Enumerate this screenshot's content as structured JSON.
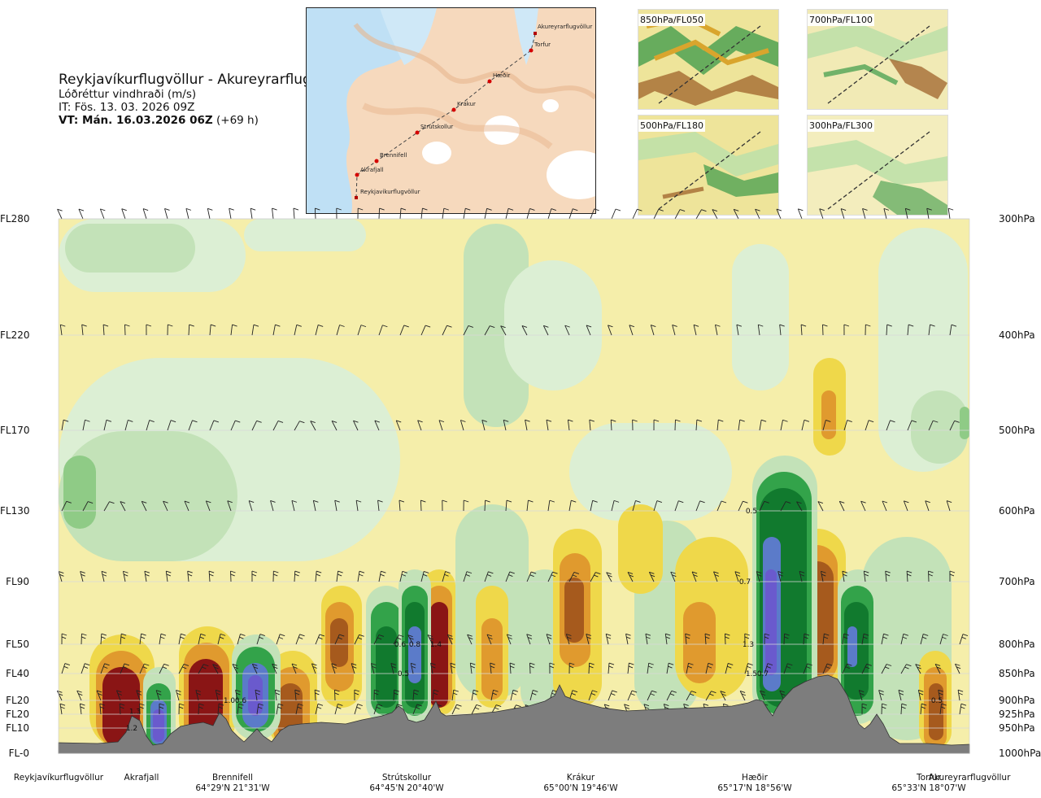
{
  "header": {
    "title": "Reykjavíkurflugvöllur - Akureyrarflugvöllur",
    "subtitle": "Lóðréttur vindhraði (m/s)",
    "issue_time": "IT: Fös. 13. 03. 2026 09Z",
    "valid_time": "VT: Mán. 16.03.2026 06Z",
    "lead_time": "(+69 h)"
  },
  "map": {
    "route_points": [
      {
        "name": "Reykjavíkurflugvöllur"
      },
      {
        "name": "Akrafjall"
      },
      {
        "name": "Brennifell"
      },
      {
        "name": "Strútskollur"
      },
      {
        "name": "Krákur"
      },
      {
        "name": "Hæðir"
      },
      {
        "name": "Torfur"
      },
      {
        "name": "Akureyrarflugvöllur"
      }
    ]
  },
  "insets": [
    {
      "label": "850hPa/FL050"
    },
    {
      "label": "700hPa/FL100"
    },
    {
      "label": "500hPa/FL180"
    },
    {
      "label": "300hPa/FL300"
    }
  ],
  "levels": [
    {
      "fl": "FL280",
      "hpa": "300hPa"
    },
    {
      "fl": "FL220",
      "hpa": "400hPa"
    },
    {
      "fl": "FL170",
      "hpa": "500hPa"
    },
    {
      "fl": "FL130",
      "hpa": "600hPa"
    },
    {
      "fl": "FL90",
      "hpa": "700hPa"
    },
    {
      "fl": "FL50",
      "hpa": "800hPa"
    },
    {
      "fl": "FL40",
      "hpa": "850hPa"
    },
    {
      "fl": "FL20",
      "hpa": "900hPa"
    },
    {
      "fl": "FL20",
      "hpa": "925hPa"
    },
    {
      "fl": "FL10",
      "hpa": "950hPa"
    },
    {
      "fl": "FL-0",
      "hpa": "1000hPa"
    }
  ],
  "locations": [
    {
      "name": "Reykjavíkurflugvöllur",
      "coord": ""
    },
    {
      "name": "Akrafjall",
      "coord": ""
    },
    {
      "name": "Brennifell",
      "coord": "64°29'N 21°31'W"
    },
    {
      "name": "Strútskollur",
      "coord": "64°45'N 20°40'W"
    },
    {
      "name": "Krákur",
      "coord": "65°00'N 19°46'W"
    },
    {
      "name": "Hæðir",
      "coord": "65°17'N 18°56'W"
    },
    {
      "name": "Torfur",
      "coord": "65°33'N 18°07'W"
    },
    {
      "name": "Akureyrarflugvöllur",
      "coord": ""
    }
  ],
  "colors": {
    "light_green": "#dcefd4",
    "pale_green": "#c3e2b8",
    "mid_green": "#8fcb86",
    "green": "#33a34a",
    "dark_green": "#117a2e",
    "blue": "#5b7bc9",
    "violet": "#6a5acd",
    "pale_yellow": "#f5eeaa",
    "yellow": "#efd84a",
    "orange": "#e09a2e",
    "brown": "#a65a1d",
    "dark_red": "#8a1515",
    "terrain": "#7d7d7d"
  },
  "chart_data": {
    "type": "heatmap",
    "title": "Reykjavíkurflugvöllur - Akureyrarflugvöllur",
    "variable": "Lóðréttur vindhraði (m/s)",
    "x_axis": "route distance from Reykjavíkurflugvöllur to Akureyrarflugvöllur",
    "y_axis_left": [
      "FL280",
      "FL220",
      "FL170",
      "FL130",
      "FL90",
      "FL50",
      "FL40",
      "FL20",
      "FL20",
      "FL10",
      "FL-0"
    ],
    "y_axis_right": [
      "300hPa",
      "400hPa",
      "500hPa",
      "600hPa",
      "700hPa",
      "800hPa",
      "850hPa",
      "900hPa",
      "925hPa",
      "950hPa",
      "1000hPa"
    ],
    "pressure_levels_hpa": [
      300,
      400,
      500,
      600,
      700,
      800,
      850,
      900,
      925,
      950,
      1000
    ],
    "value_labels": [
      {
        "value": "1.2",
        "station": "Akrafjall",
        "level_hpa": 950
      },
      {
        "value": "1.3",
        "station": "Akrafjall",
        "level_hpa": 920
      },
      {
        "value": "1.0",
        "station": "Brennifell",
        "level_hpa": 900
      },
      {
        "value": "0.6",
        "station": "Brennifell",
        "level_hpa": 900
      },
      {
        "value": "0.6",
        "station": "Strútskollur",
        "level_hpa": 800
      },
      {
        "value": "0.5",
        "station": "Strútskollur",
        "level_hpa": 850
      },
      {
        "value": "0.8",
        "station": "Strútskollur",
        "level_hpa": 800
      },
      {
        "value": "1.4",
        "station": "Strútskollur",
        "level_hpa": 800
      },
      {
        "value": "0.5",
        "station": "Hæðir",
        "level_hpa": 600
      },
      {
        "value": "0.7",
        "station": "Hæðir",
        "level_hpa": 700
      },
      {
        "value": "1.3",
        "station": "Hæðir",
        "level_hpa": 800
      },
      {
        "value": "1.5",
        "station": "Hæðir",
        "level_hpa": 850
      },
      {
        "value": "0.7",
        "station": "Hæðir",
        "level_hpa": 850
      },
      {
        "value": "0.5",
        "station": "Akureyrarflugvöllur",
        "level_hpa": 900
      }
    ],
    "legend": "",
    "grid": true
  }
}
